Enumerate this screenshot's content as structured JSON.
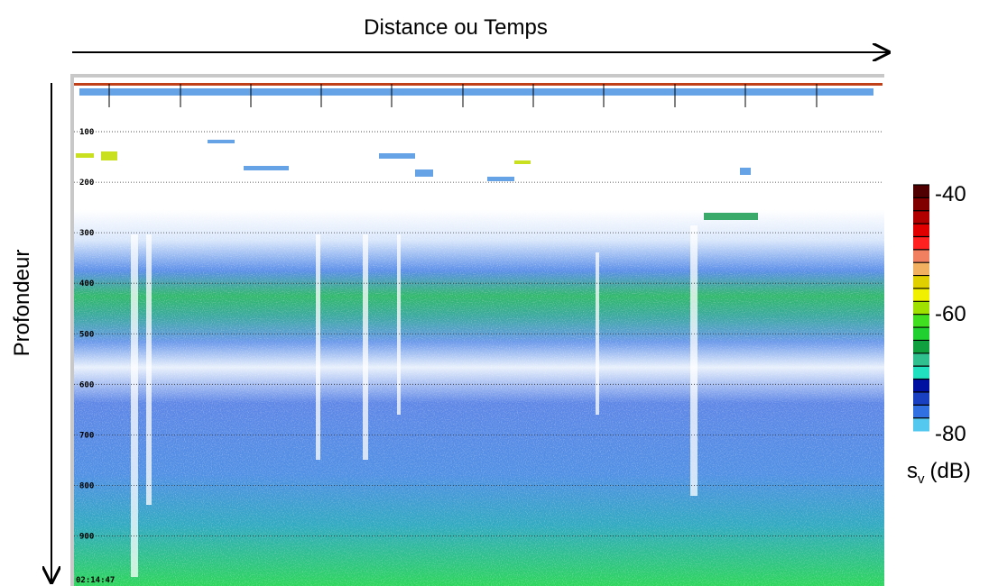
{
  "title": "Distance ou Temps",
  "y_label": "Profondeur",
  "depth_ticks": [
    100,
    200,
    300,
    400,
    500,
    600,
    700,
    800,
    900
  ],
  "timestamp": "02:14:47",
  "colorbar": {
    "ticks": [
      -40,
      -60,
      -80
    ],
    "label_main": "s",
    "label_sub": "v",
    "label_unit": "(dB)"
  }
}
